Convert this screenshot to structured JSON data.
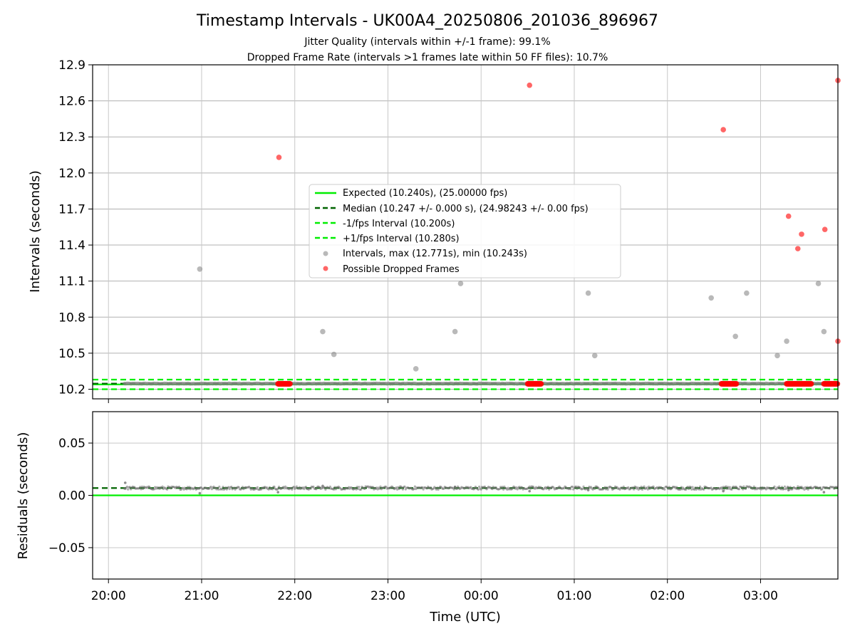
{
  "chart_data": [
    {
      "type": "scatter",
      "title": "Timestamp Intervals - UK00A4_20250806_201036_896967",
      "subtitles": [
        "Jitter Quality (intervals within +/-1 frame): 99.1%",
        "Dropped Frame Rate (intervals >1 frames late within 50 FF files): 10.7%"
      ],
      "xlabel": "",
      "ylabel": "Intervals (seconds)",
      "ylim": [
        10.12,
        12.9
      ],
      "yticks": [
        10.2,
        10.5,
        10.8,
        11.1,
        11.4,
        11.7,
        12.0,
        12.3,
        12.6,
        12.9
      ],
      "ytick_labels": [
        "10.2",
        "10.5",
        "10.8",
        "11.1",
        "11.4",
        "11.7",
        "12.0",
        "12.3",
        "12.6",
        "12.9"
      ],
      "xlim_hours": [
        19.83,
        27.83
      ],
      "grid": true,
      "legend_position": "center",
      "lines": [
        {
          "name": "Expected (10.240s), (25.00000 fps)",
          "y": 10.24,
          "style": "solid",
          "color": "#00ee00"
        },
        {
          "name": "Median (10.247 +/- 0.000 s), (24.98243 +/- 0.00 fps)",
          "y": 10.247,
          "style": "dashed",
          "color": "#006400"
        },
        {
          "name": "-1/fps Interval (10.200s)",
          "y": 10.2,
          "style": "dashed",
          "color": "#00ee00"
        },
        {
          "name": "+1/fps Interval (10.280s)",
          "y": 10.28,
          "style": "dashed",
          "color": "#00ee00"
        }
      ],
      "series": [
        {
          "name": "Intervals, max (12.771s), min (10.243s)",
          "color": "#808080",
          "points": [
            [
              20.98,
              11.2
            ],
            [
              22.3,
              10.68
            ],
            [
              22.42,
              10.49
            ],
            [
              23.3,
              10.37
            ],
            [
              23.72,
              10.68
            ],
            [
              23.78,
              11.08
            ],
            [
              25.15,
              11.0
            ],
            [
              25.22,
              10.48
            ],
            [
              26.47,
              10.96
            ],
            [
              26.73,
              10.64
            ],
            [
              26.85,
              11.0
            ],
            [
              27.18,
              10.48
            ],
            [
              27.28,
              10.6
            ],
            [
              27.62,
              11.08
            ],
            [
              27.68,
              10.68
            ]
          ]
        },
        {
          "name": "Possible Dropped Frames",
          "color": "#ff0000",
          "points": [
            [
              21.83,
              12.13
            ],
            [
              24.52,
              12.73
            ],
            [
              26.6,
              12.36
            ],
            [
              27.3,
              11.64
            ],
            [
              27.4,
              11.37
            ],
            [
              27.44,
              11.49
            ],
            [
              27.69,
              11.53
            ],
            [
              27.83,
              12.77
            ],
            [
              27.83,
              10.6
            ]
          ]
        }
      ],
      "dropped_clusters": [
        [
          21.82,
          21.95
        ],
        [
          24.5,
          24.65
        ],
        [
          26.58,
          26.74
        ],
        [
          27.28,
          27.55
        ],
        [
          27.68,
          27.83
        ]
      ]
    },
    {
      "type": "scatter",
      "title": "",
      "xlabel": "Time (UTC)",
      "ylabel": "Residuals (seconds)",
      "ylim": [
        -0.08,
        0.08
      ],
      "yticks": [
        -0.05,
        0.0,
        0.05
      ],
      "ytick_labels": [
        "−0.05",
        "0.00",
        "0.05"
      ],
      "xlim_hours": [
        19.83,
        27.83
      ],
      "xticks": [
        20,
        21,
        22,
        23,
        24,
        25,
        26,
        27
      ],
      "xtick_labels": [
        "20:00",
        "21:00",
        "22:00",
        "23:00",
        "00:00",
        "01:00",
        "02:00",
        "03:00"
      ],
      "grid": true,
      "lines": [
        {
          "y": 0.0,
          "style": "solid",
          "color": "#00ee00"
        },
        {
          "y": 0.007,
          "style": "dashed",
          "color": "#006400"
        }
      ],
      "residual_baseline": 0.007,
      "residual_outliers": [
        [
          20.18,
          0.012
        ],
        [
          20.98,
          0.002
        ],
        [
          21.82,
          0.003
        ],
        [
          22.3,
          0.009
        ],
        [
          23.72,
          0.008
        ],
        [
          24.52,
          0.004
        ],
        [
          25.15,
          0.005
        ],
        [
          26.6,
          0.004
        ],
        [
          27.3,
          0.005
        ],
        [
          27.68,
          0.003
        ]
      ]
    }
  ]
}
